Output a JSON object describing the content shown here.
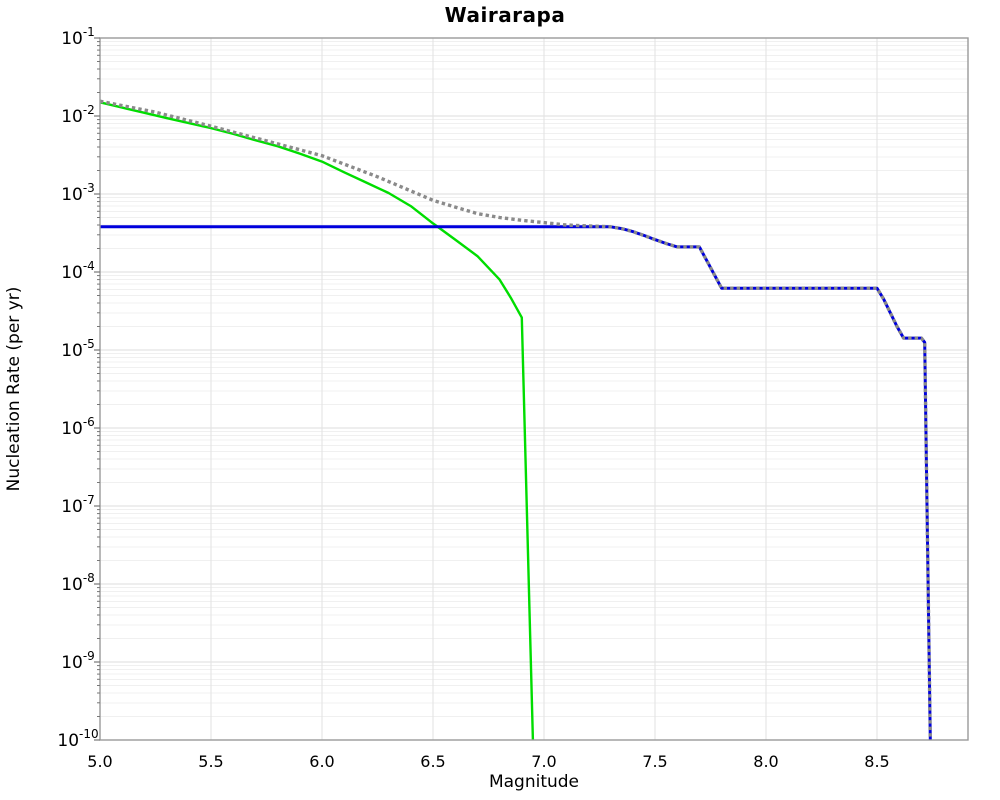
{
  "chart_data": {
    "type": "line",
    "title": "Wairarapa",
    "xlabel": "Magnitude",
    "ylabel": "Nucleation Rate (per yr)",
    "xlim": [
      5.0,
      8.91
    ],
    "yscale": "log",
    "ylim_exp": [
      -10,
      -1
    ],
    "grid_on": true,
    "legend": "none",
    "xticks": [
      {
        "v": 5.0,
        "label": "5.0"
      },
      {
        "v": 5.5,
        "label": "5.5"
      },
      {
        "v": 6.0,
        "label": "6.0"
      },
      {
        "v": 6.5,
        "label": "6.5"
      },
      {
        "v": 7.0,
        "label": "7.0"
      },
      {
        "v": 7.5,
        "label": "7.5"
      },
      {
        "v": 8.0,
        "label": "8.0"
      },
      {
        "v": 8.5,
        "label": "8.5"
      }
    ],
    "ytick_exponents": [
      -1,
      -2,
      -3,
      -4,
      -5,
      -6,
      -7,
      -8,
      -9,
      -10
    ],
    "colors": {
      "grid_major": "#dcdcdc",
      "grid_minor": "#f0f0f0",
      "grid_vertical": "#e2e2e2",
      "axis_border": "#9a9a9a",
      "tick": "#777777",
      "text": "#000000",
      "background": "#ffffff"
    },
    "series": [
      {
        "name": "green-solid-line",
        "color": "#00dd00",
        "style": "solid",
        "width": 2.4,
        "points": [
          [
            5.0,
            0.015
          ],
          [
            5.1,
            0.0128
          ],
          [
            5.2,
            0.011
          ],
          [
            5.3,
            0.0094
          ],
          [
            5.4,
            0.0081
          ],
          [
            5.5,
            0.007
          ],
          [
            5.6,
            0.0059
          ],
          [
            5.7,
            0.0049
          ],
          [
            5.8,
            0.0041
          ],
          [
            5.9,
            0.0033
          ],
          [
            6.0,
            0.0026
          ],
          [
            6.1,
            0.0019
          ],
          [
            6.2,
            0.0014
          ],
          [
            6.3,
            0.00103
          ],
          [
            6.4,
            0.0007
          ],
          [
            6.5,
            0.00042
          ],
          [
            6.6,
            0.00026
          ],
          [
            6.7,
            0.00016
          ],
          [
            6.8,
            8e-05
          ],
          [
            6.85,
            4.7e-05
          ],
          [
            6.9,
            2.6e-05
          ],
          [
            6.95,
            1e-10
          ]
        ]
      },
      {
        "name": "blue-solid-line",
        "color": "#0000dd",
        "style": "solid",
        "width": 3,
        "points": [
          [
            5.0,
            0.00038
          ],
          [
            7.3,
            0.00038
          ],
          [
            7.35,
            0.00036
          ],
          [
            7.4,
            0.00033
          ],
          [
            7.45,
            0.000295
          ],
          [
            7.5,
            0.00026
          ],
          [
            7.55,
            0.000232
          ],
          [
            7.6,
            0.00021
          ],
          [
            7.7,
            0.00021
          ],
          [
            7.8,
            6.2e-05
          ],
          [
            8.5,
            6.2e-05
          ],
          [
            8.53,
            4.5e-05
          ],
          [
            8.56,
            3e-05
          ],
          [
            8.59,
            2e-05
          ],
          [
            8.62,
            1.42e-05
          ],
          [
            8.7,
            1.42e-05
          ],
          [
            8.715,
            1.25e-05
          ],
          [
            8.74,
            1e-10
          ]
        ]
      },
      {
        "name": "gray-dotted-line",
        "color": "#8a8a8a",
        "style": "dotted",
        "width": 3.4,
        "points": [
          [
            5.0,
            0.0155
          ],
          [
            5.25,
            0.0112
          ],
          [
            5.5,
            0.0074
          ],
          [
            5.75,
            0.0048
          ],
          [
            6.0,
            0.0031
          ],
          [
            6.25,
            0.00166
          ],
          [
            6.5,
            0.00083
          ],
          [
            6.6,
            0.00068
          ],
          [
            6.7,
            0.00056
          ],
          [
            6.8,
            0.0005
          ],
          [
            6.9,
            0.00046
          ],
          [
            7.0,
            0.00043
          ],
          [
            7.1,
            0.0004
          ],
          [
            7.2,
            0.00039
          ],
          [
            7.3,
            0.00038
          ],
          [
            7.35,
            0.00036
          ],
          [
            7.4,
            0.00033
          ],
          [
            7.45,
            0.000295
          ],
          [
            7.5,
            0.00026
          ],
          [
            7.55,
            0.000232
          ],
          [
            7.6,
            0.00021
          ],
          [
            7.7,
            0.00021
          ],
          [
            7.8,
            6.2e-05
          ],
          [
            8.5,
            6.2e-05
          ],
          [
            8.53,
            4.5e-05
          ],
          [
            8.56,
            3e-05
          ],
          [
            8.59,
            2e-05
          ],
          [
            8.62,
            1.42e-05
          ],
          [
            8.7,
            1.42e-05
          ],
          [
            8.715,
            1.25e-05
          ],
          [
            8.74,
            1e-10
          ]
        ]
      }
    ]
  }
}
